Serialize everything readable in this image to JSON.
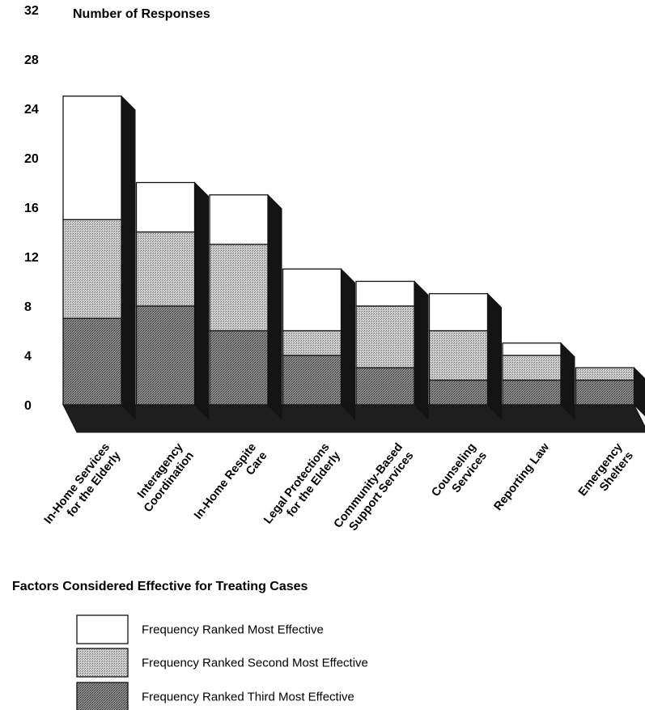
{
  "chart_data": {
    "type": "bar",
    "stacked": true,
    "three_d": true,
    "ylabel": "Number of Responses",
    "xlabel": "Factors Considered Effective for Treating Cases",
    "ylim": [
      0,
      32
    ],
    "yticks": [
      0,
      4,
      8,
      12,
      16,
      20,
      24,
      28,
      32
    ],
    "categories": [
      [
        "In-Home Services",
        "for the Elderly"
      ],
      [
        "Interagency",
        "Coordination"
      ],
      [
        "In-Home Respite",
        "Care"
      ],
      [
        "Legal Protections",
        "for the Elderly"
      ],
      [
        "Community-Based",
        "Support Services"
      ],
      [
        "Counseling",
        "Services"
      ],
      [
        "Reporting Law"
      ],
      [
        "Emergency",
        "Shelters"
      ]
    ],
    "series": [
      {
        "name": "Frequency Ranked Third Most Effective",
        "values": [
          7,
          8,
          6,
          4,
          3,
          2,
          2,
          2
        ],
        "color": "#7f7f7f"
      },
      {
        "name": "Frequency Ranked Second Most Effective",
        "values": [
          8,
          6,
          7,
          2,
          5,
          4,
          2,
          1
        ],
        "color": "#bdbdbd"
      },
      {
        "name": "Frequency Ranked Most Effective",
        "values": [
          10,
          4,
          4,
          5,
          2,
          3,
          1,
          0
        ],
        "color": "#ffffff"
      }
    ],
    "legend": [
      "Frequency Ranked Most Effective",
      "Frequency Ranked Second Most Effective",
      "Frequency Ranked Third Most Effective"
    ],
    "legend_position": "bottom"
  }
}
